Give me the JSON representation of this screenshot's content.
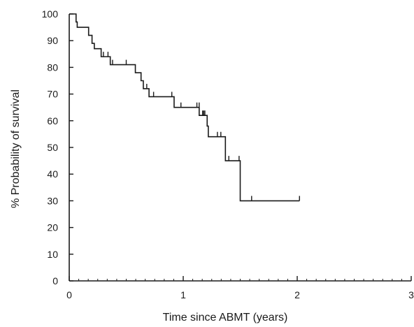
{
  "chart_data": {
    "type": "line",
    "subtype": "kaplan-meier-step",
    "title": "",
    "xlabel": "Time since ABMT (years)",
    "ylabel": "% Probability of survival",
    "xlim": [
      0,
      3
    ],
    "ylim": [
      0,
      100
    ],
    "x_ticks": [
      "0",
      "1",
      "2",
      "3"
    ],
    "y_ticks": [
      "0",
      "10",
      "20",
      "30",
      "40",
      "50",
      "60",
      "70",
      "80",
      "90",
      "100"
    ],
    "grid": false,
    "legend": "none",
    "line_color": "#1a1a1a",
    "series": [
      {
        "steps": [
          {
            "x": 0.0,
            "y": 100
          },
          {
            "x": 0.06,
            "y": 97
          },
          {
            "x": 0.07,
            "y": 95
          },
          {
            "x": 0.17,
            "y": 92
          },
          {
            "x": 0.2,
            "y": 89
          },
          {
            "x": 0.22,
            "y": 87
          },
          {
            "x": 0.28,
            "y": 84
          },
          {
            "x": 0.36,
            "y": 81
          },
          {
            "x": 0.58,
            "y": 78
          },
          {
            "x": 0.63,
            "y": 75
          },
          {
            "x": 0.65,
            "y": 72
          },
          {
            "x": 0.7,
            "y": 69
          },
          {
            "x": 0.92,
            "y": 65
          },
          {
            "x": 1.14,
            "y": 62
          },
          {
            "x": 1.21,
            "y": 58
          },
          {
            "x": 1.22,
            "y": 54
          },
          {
            "x": 1.37,
            "y": 45
          },
          {
            "x": 1.5,
            "y": 30
          }
        ],
        "x_end": 2.02,
        "censored": [
          {
            "x": 0.3,
            "y": 84
          },
          {
            "x": 0.34,
            "y": 84
          },
          {
            "x": 0.38,
            "y": 81
          },
          {
            "x": 0.5,
            "y": 81
          },
          {
            "x": 0.68,
            "y": 72
          },
          {
            "x": 0.74,
            "y": 69
          },
          {
            "x": 0.9,
            "y": 69
          },
          {
            "x": 0.98,
            "y": 65
          },
          {
            "x": 1.12,
            "y": 65
          },
          {
            "x": 1.14,
            "y": 65
          },
          {
            "x": 1.17,
            "y": 62
          },
          {
            "x": 1.18,
            "y": 62
          },
          {
            "x": 1.19,
            "y": 62
          },
          {
            "x": 1.3,
            "y": 54
          },
          {
            "x": 1.33,
            "y": 54
          },
          {
            "x": 1.4,
            "y": 45
          },
          {
            "x": 1.49,
            "y": 45
          },
          {
            "x": 1.6,
            "y": 30
          },
          {
            "x": 2.02,
            "y": 30
          }
        ]
      }
    ]
  }
}
